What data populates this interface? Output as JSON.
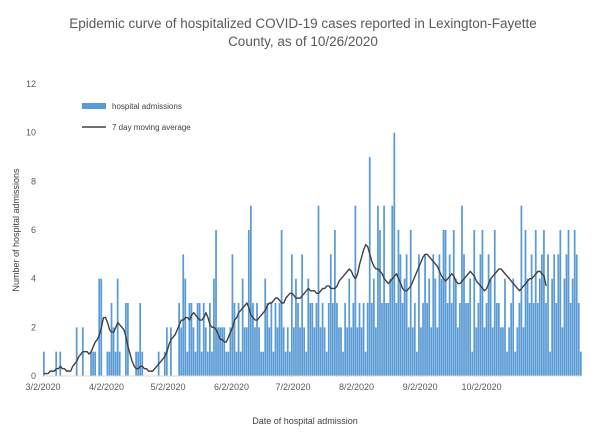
{
  "chart_data": {
    "type": "bar",
    "title_line1": "Epidemic curve of hospitalized COVID-19 cases reported in Lexington-Fayette",
    "title_line2": "County, as of 10/26/2020",
    "xlabel": "Date of hospital admission",
    "ylabel": "Number of hospital admissions",
    "ylim": [
      0,
      12
    ],
    "yticks": [
      0,
      2,
      4,
      6,
      8,
      10,
      12
    ],
    "grid": false,
    "legend_position": "top-left",
    "start_date": "3/2/2020",
    "end_date": "10/26/2020",
    "xticks": [
      {
        "label": "3/2/2020",
        "day": 0
      },
      {
        "label": "4/2/2020",
        "day": 31
      },
      {
        "label": "5/2/2020",
        "day": 61
      },
      {
        "label": "6/2/2020",
        "day": 92
      },
      {
        "label": "7/2/2020",
        "day": 122
      },
      {
        "label": "8/2/2020",
        "day": 153
      },
      {
        "label": "9/2/2020",
        "day": 184
      },
      {
        "label": "10/2/2020",
        "day": 214
      }
    ],
    "series": [
      {
        "name": "hospital admissions",
        "kind": "bar",
        "color": "#5b9bd5",
        "values": [
          1,
          0,
          0,
          0,
          0,
          0,
          1,
          0,
          1,
          0,
          0,
          0,
          0,
          0,
          0,
          0,
          2,
          0,
          0,
          2,
          0,
          0,
          0,
          1,
          1,
          1,
          0,
          4,
          4,
          0,
          0,
          1,
          1,
          3,
          2,
          1,
          4,
          1,
          0,
          0,
          3,
          3,
          0,
          0,
          0,
          1,
          1,
          3,
          1,
          0,
          0,
          0,
          0,
          0,
          0,
          0,
          1,
          0,
          0,
          1,
          2,
          0,
          2,
          0,
          0,
          0,
          3,
          2,
          5,
          4,
          1,
          3,
          3,
          2,
          1,
          3,
          3,
          1,
          3,
          2,
          1,
          3,
          1,
          4,
          6,
          2,
          2,
          2,
          2,
          1,
          1,
          2,
          5,
          3,
          1,
          3,
          1,
          4,
          2,
          2,
          6,
          7,
          3,
          2,
          3,
          2,
          1,
          1,
          4,
          3,
          2,
          3,
          1,
          3,
          2,
          3,
          6,
          2,
          1,
          2,
          1,
          5,
          2,
          4,
          3,
          2,
          5,
          2,
          1,
          4,
          3,
          3,
          2,
          3,
          7,
          2,
          3,
          2,
          1,
          3,
          5,
          3,
          6,
          3,
          2,
          2,
          1,
          3,
          2,
          4,
          2,
          3,
          7,
          2,
          3,
          2,
          3,
          1,
          3,
          9,
          3,
          4,
          2,
          7,
          6,
          3,
          7,
          3,
          3,
          4,
          7,
          10,
          3,
          6,
          5,
          3,
          4,
          5,
          2,
          6,
          2,
          3,
          1,
          5,
          2,
          3,
          5,
          3,
          4,
          2,
          5,
          4,
          2,
          5,
          4,
          6,
          6,
          3,
          5,
          3,
          6,
          4,
          2,
          3,
          7,
          5,
          3,
          3,
          4,
          1,
          6,
          2,
          3,
          5,
          6,
          2,
          3,
          5,
          4,
          2,
          6,
          3,
          3,
          2,
          2,
          4,
          1,
          2,
          3,
          4,
          1,
          2,
          3,
          7,
          2,
          6,
          4,
          3,
          5,
          3,
          6,
          3,
          4,
          5,
          6,
          3,
          5,
          1,
          4,
          5,
          3,
          5,
          6,
          2,
          4,
          5,
          6,
          3,
          4,
          6,
          5,
          3,
          1
        ]
      },
      {
        "name": "7 day moving average",
        "kind": "line",
        "color": "#404040",
        "values": [
          0.1,
          0.1,
          0.1,
          0.2,
          0.2,
          0.2,
          0.3,
          0.3,
          0.4,
          0.3,
          0.3,
          0.2,
          0.2,
          0.2,
          0.4,
          0.5,
          0.6,
          0.8,
          0.9,
          1.0,
          1.0,
          1.0,
          0.9,
          1.0,
          1.2,
          1.4,
          1.5,
          1.7,
          2.0,
          2.4,
          2.4,
          2.2,
          1.9,
          1.8,
          1.8,
          2.0,
          2.2,
          2.1,
          2.0,
          1.9,
          1.6,
          1.2,
          0.9,
          0.6,
          0.4,
          0.3,
          0.3,
          0.4,
          0.4,
          0.3,
          0.3,
          0.2,
          0.2,
          0.2,
          0.3,
          0.4,
          0.5,
          0.6,
          0.7,
          0.8,
          1.0,
          1.3,
          1.5,
          1.6,
          1.7,
          1.9,
          2.1,
          2.3,
          2.3,
          2.4,
          2.4,
          2.3,
          2.5,
          2.6,
          2.5,
          2.4,
          2.3,
          2.3,
          2.4,
          2.6,
          2.4,
          2.1,
          2.0,
          2.0,
          1.9,
          1.7,
          1.5,
          1.5,
          1.4,
          1.4,
          1.6,
          1.8,
          2.0,
          2.3,
          2.4,
          2.6,
          2.7,
          2.8,
          2.9,
          3.0,
          2.8,
          2.5,
          2.4,
          2.3,
          2.3,
          2.4,
          2.5,
          2.6,
          2.7,
          2.9,
          3.0,
          3.0,
          3.1,
          3.2,
          3.2,
          3.1,
          3.0,
          3.0,
          3.2,
          3.3,
          3.4,
          3.4,
          3.3,
          3.2,
          3.2,
          3.2,
          3.3,
          3.4,
          3.5,
          3.6,
          3.5,
          3.5,
          3.5,
          3.4,
          3.4,
          3.5,
          3.6,
          3.6,
          3.7,
          3.7,
          3.6,
          3.6,
          3.6,
          3.7,
          3.9,
          4.0,
          4.1,
          4.2,
          4.3,
          4.4,
          4.3,
          4.1,
          4.0,
          4.2,
          4.6,
          4.9,
          5.2,
          5.4,
          5.3,
          5.0,
          4.7,
          4.5,
          4.4,
          4.4,
          4.3,
          4.2,
          4.0,
          3.9,
          3.8,
          3.9,
          4.0,
          4.1,
          4.2,
          4.0,
          3.8,
          3.6,
          3.5,
          3.5,
          3.6,
          3.7,
          3.9,
          4.1,
          4.3,
          4.5,
          4.7,
          4.9,
          5.0,
          5.0,
          4.9,
          4.8,
          4.7,
          4.6,
          4.5,
          4.3,
          4.1,
          4.0,
          3.9,
          4.0,
          4.1,
          4.2,
          4.1,
          3.9,
          3.8,
          3.8,
          3.9,
          4.0,
          4.1,
          4.2,
          4.3,
          4.2,
          4.1,
          3.9,
          3.8,
          3.7,
          3.6,
          3.5,
          3.6,
          3.8,
          4.0,
          4.1,
          4.2,
          4.3,
          4.4,
          4.4,
          4.3,
          4.2,
          4.1,
          4.0,
          3.9,
          3.8,
          3.7,
          3.6,
          3.5,
          3.6,
          3.7,
          3.8,
          3.9,
          4.0,
          4.0,
          4.1,
          4.2,
          4.3,
          4.3,
          4.2,
          4.1,
          3.7
        ]
      }
    ]
  }
}
